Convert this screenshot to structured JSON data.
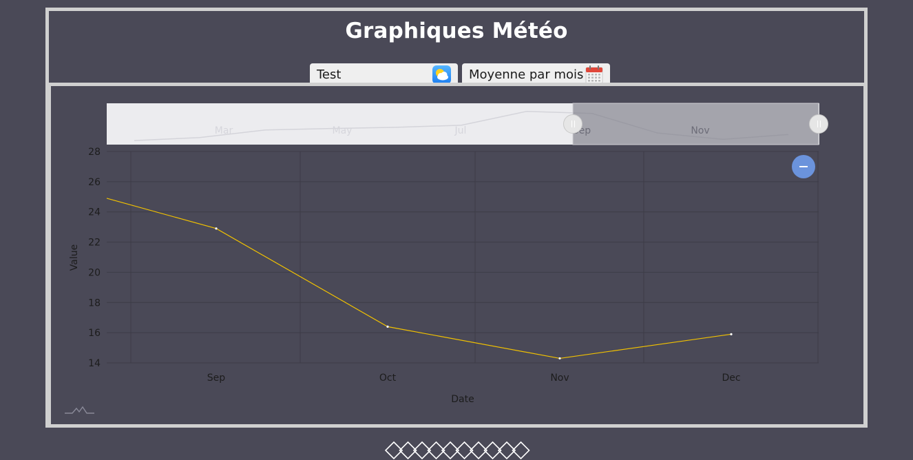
{
  "header": {
    "title": "Graphiques Météo",
    "station_select": {
      "value": "Test",
      "icon": "weather-cloud-sun-icon"
    },
    "mode_select": {
      "value": "Moyenne par mois",
      "icon": "calendar-icon"
    }
  },
  "chart": {
    "zoom_button_icon": "minus-icon",
    "navigator_labels": [
      "Mar",
      "May",
      "Jul",
      "Sep",
      "Nov"
    ],
    "navigator_values": [
      13.9,
      14.9,
      17.4,
      17.9,
      18.3,
      19.0,
      23.6,
      22.9,
      16.4,
      14.3,
      15.9
    ],
    "navigator_selection": {
      "from": "Sep",
      "to": "Dec"
    }
  },
  "chart_data": {
    "type": "line",
    "categories": [
      "Sep",
      "Oct",
      "Nov",
      "Dec"
    ],
    "series": [
      {
        "values": [
          22.9,
          16.4,
          14.3,
          15.9
        ],
        "color": "#f2c200"
      }
    ],
    "start_value": 24.9,
    "xlabel": "Date",
    "ylabel": "Value",
    "ylim": [
      14,
      28
    ],
    "yticks": [
      "14",
      "16",
      "18",
      "20",
      "22",
      "24",
      "26",
      "28"
    ],
    "grid": true
  },
  "colors": {
    "background": "#4a4957",
    "border": "#d0d0d0",
    "line": "#f2c200",
    "zoom_button": "#6b93dc"
  }
}
